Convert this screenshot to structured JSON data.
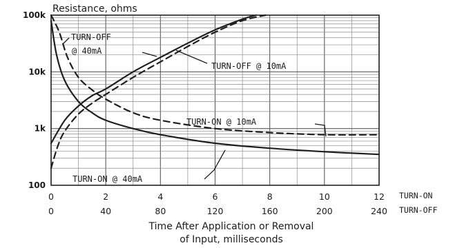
{
  "chart_data": {
    "type": "line",
    "title": "Resistance, ohms",
    "ylabel": "Resistance, ohms",
    "xlabel_lines": [
      "Time After Application or Removal",
      "of Input, milliseconds"
    ],
    "yscale": "log",
    "ylim": [
      100,
      100000
    ],
    "y_tick_labels": [
      "100",
      "1k",
      "10k",
      "100k"
    ],
    "x_axes": [
      {
        "name": "TURN-ON",
        "unit": "ms",
        "range": [
          0,
          12
        ],
        "ticks": [
          "0",
          "2",
          "4",
          "6",
          "8",
          "10",
          "12"
        ]
      },
      {
        "name": "TURN-OFF",
        "unit": "ms",
        "range": [
          0,
          240
        ],
        "ticks": [
          "0",
          "40",
          "80",
          "120",
          "160",
          "200",
          "240"
        ]
      }
    ],
    "grid": true,
    "annotations": [
      "TURN-OFF",
      "@ 40mA",
      "TURN-OFF @ 10mA",
      "TURN-ON @ 10mA",
      "TURN-ON @ 40mA"
    ],
    "series": [
      {
        "name": "TURN-OFF @ 40mA",
        "axis": "TURN-OFF",
        "dash": "solid",
        "x": [
          0,
          10,
          20,
          30,
          40,
          60,
          80,
          100,
          120,
          140,
          150
        ],
        "y": [
          550,
          1400,
          2500,
          3800,
          5000,
          10000,
          18000,
          32000,
          55000,
          85000,
          100000
        ]
      },
      {
        "name": "TURN-OFF @ 10mA",
        "axis": "TURN-OFF",
        "dash": "dashed",
        "x": [
          0,
          5,
          10,
          20,
          30,
          40,
          60,
          80,
          100,
          120,
          140,
          157
        ],
        "y": [
          200,
          500,
          900,
          1800,
          2800,
          4000,
          8000,
          15000,
          28000,
          50000,
          80000,
          100000
        ]
      },
      {
        "name": "TURN-ON @ 10mA",
        "axis": "TURN-ON",
        "dash": "dashed",
        "x": [
          0,
          0.3,
          0.6,
          1,
          1.5,
          2,
          3,
          4,
          6,
          8,
          10,
          12
        ],
        "y": [
          100000,
          50000,
          18000,
          8000,
          4800,
          3300,
          1900,
          1400,
          1000,
          850,
          780,
          780
        ]
      },
      {
        "name": "TURN-ON @ 40mA",
        "axis": "TURN-ON",
        "dash": "solid",
        "x": [
          0,
          0.2,
          0.5,
          1,
          1.5,
          2,
          3,
          4,
          6,
          8,
          10,
          12
        ],
        "y": [
          80000,
          20000,
          7000,
          3000,
          1900,
          1400,
          1000,
          780,
          550,
          450,
          390,
          350
        ]
      }
    ]
  }
}
